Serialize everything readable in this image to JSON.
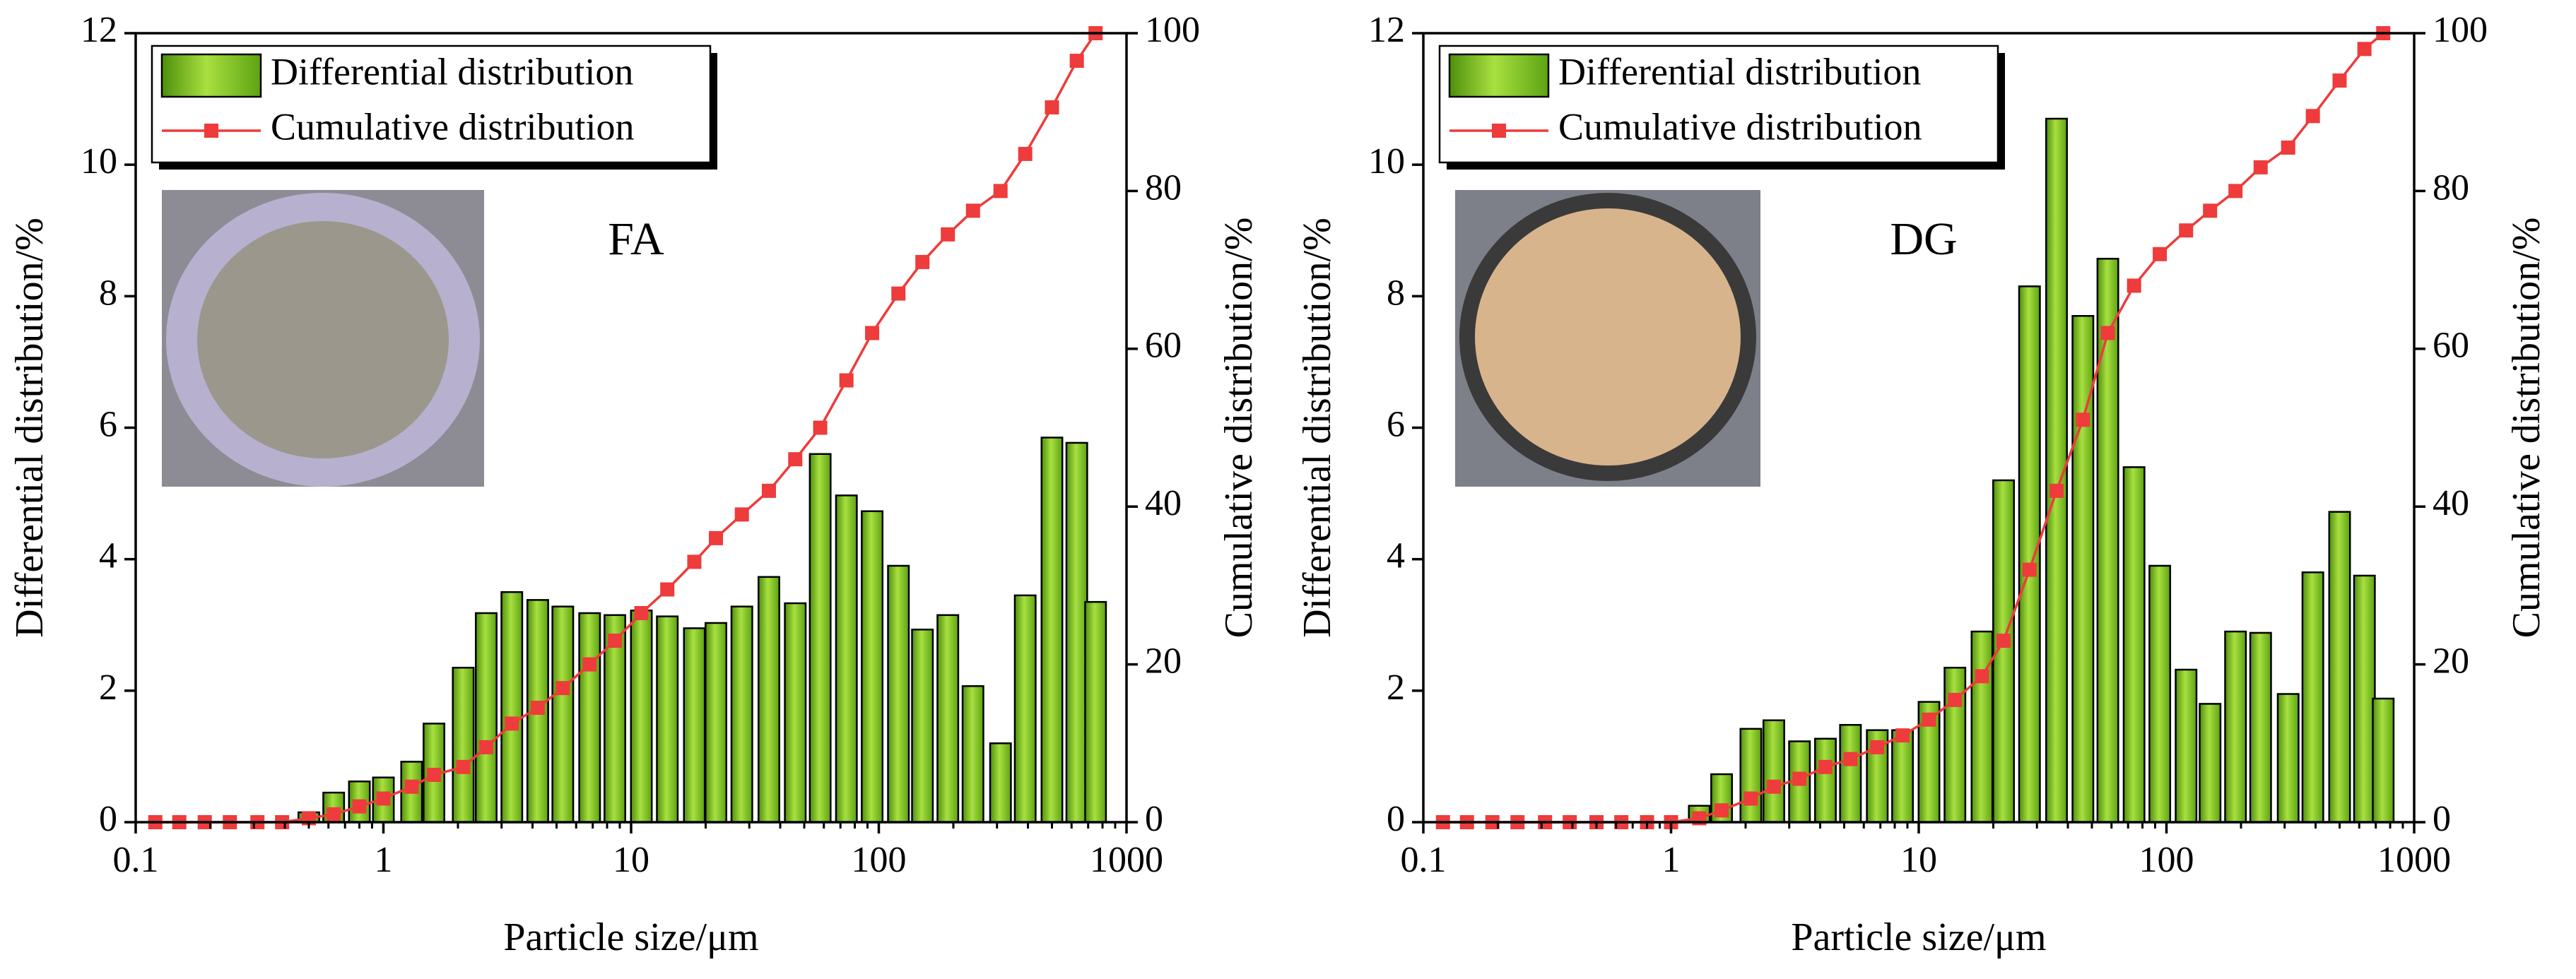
{
  "chart_data": [
    {
      "type": "bar",
      "annotation": "FA",
      "xlabel": "Particle size/μm",
      "ylabel": "Differential distribution/%",
      "y2label": "Cumulative distribution/%",
      "xscale": "log",
      "xlim": [
        0.1,
        1000
      ],
      "xticks": [
        0.1,
        1,
        10,
        100,
        1000
      ],
      "ylim": [
        0,
        12
      ],
      "yticks": [
        0,
        2,
        4,
        6,
        8,
        10,
        12
      ],
      "y2lim": [
        0,
        100
      ],
      "y2ticks": [
        0,
        20,
        40,
        60,
        80,
        100
      ],
      "x": [
        0.12,
        0.15,
        0.19,
        0.24,
        0.31,
        0.39,
        0.5,
        0.63,
        0.8,
        1.0,
        1.3,
        1.6,
        2.1,
        2.6,
        3.3,
        4.2,
        5.3,
        6.8,
        8.6,
        11,
        14,
        18,
        22,
        28,
        36,
        46,
        58,
        74,
        94,
        120,
        150,
        190,
        240,
        310,
        390,
        500,
        630,
        750
      ],
      "series": [
        {
          "name": "Differential distribution",
          "type": "bar",
          "color": "#7ac41e",
          "values": [
            0,
            0,
            0,
            0,
            0,
            0,
            0.15,
            0.45,
            0.62,
            0.68,
            0.92,
            1.5,
            2.35,
            3.18,
            3.5,
            3.38,
            3.28,
            3.18,
            3.15,
            3.22,
            3.13,
            2.95,
            3.03,
            3.28,
            3.73,
            3.33,
            5.6,
            4.97,
            4.73,
            3.9,
            2.93,
            3.15,
            2.07,
            1.2,
            3.45,
            5.85,
            5.77,
            3.35
          ]
        },
        {
          "name": "Cumulative distribution",
          "type": "line",
          "axis": "y2",
          "color": "#ee3b3b",
          "values": [
            0,
            0,
            0,
            0,
            0,
            0,
            0.5,
            1,
            2,
            3,
            4.5,
            6,
            7,
            9.5,
            12.5,
            14.5,
            17,
            20,
            23,
            26.5,
            29.5,
            33,
            36,
            39,
            42,
            46,
            50,
            56,
            62,
            67,
            71,
            74.5,
            77.5,
            80,
            84.7,
            90.6,
            96.5,
            100
          ]
        }
      ]
    },
    {
      "type": "bar",
      "annotation": "DG",
      "xlabel": "Particle size/μm",
      "ylabel": "Differential distribution/%",
      "y2label": "Cumulative distribution/%",
      "xscale": "log",
      "xlim": [
        0.1,
        1000
      ],
      "xticks": [
        0.1,
        1,
        10,
        100,
        1000
      ],
      "ylim": [
        0,
        12
      ],
      "yticks": [
        0,
        2,
        4,
        6,
        8,
        10,
        12
      ],
      "y2lim": [
        0,
        100
      ],
      "y2ticks": [
        0,
        20,
        40,
        60,
        80,
        100
      ],
      "x": [
        0.12,
        0.15,
        0.19,
        0.24,
        0.31,
        0.39,
        0.5,
        0.63,
        0.8,
        1.0,
        1.3,
        1.6,
        2.1,
        2.6,
        3.3,
        4.2,
        5.3,
        6.8,
        8.6,
        11,
        14,
        18,
        22,
        28,
        36,
        46,
        58,
        74,
        94,
        120,
        150,
        190,
        240,
        310,
        390,
        500,
        630,
        750
      ],
      "series": [
        {
          "name": "Differential distribution",
          "type": "bar",
          "color": "#7ac41e",
          "values": [
            0,
            0,
            0,
            0,
            0,
            0,
            0,
            0,
            0,
            0,
            0.25,
            0.73,
            1.42,
            1.55,
            1.23,
            1.27,
            1.48,
            1.4,
            1.4,
            1.83,
            2.35,
            2.9,
            5.2,
            8.15,
            10.7,
            7.7,
            8.57,
            5.4,
            3.9,
            2.32,
            1.8,
            2.9,
            2.88,
            1.95,
            3.8,
            4.72,
            3.75,
            1.88
          ]
        },
        {
          "name": "Cumulative distribution",
          "type": "line",
          "axis": "y2",
          "color": "#ee3b3b",
          "values": [
            0,
            0,
            0,
            0,
            0,
            0,
            0,
            0,
            0,
            0,
            0.5,
            1.5,
            3,
            4.5,
            5.5,
            7,
            8,
            9.5,
            11,
            13,
            15.5,
            18.5,
            23,
            32,
            42,
            51,
            62,
            68,
            72,
            75,
            77.5,
            80,
            83,
            85.5,
            89.5,
            94,
            98,
            100
          ]
        }
      ]
    }
  ]
}
